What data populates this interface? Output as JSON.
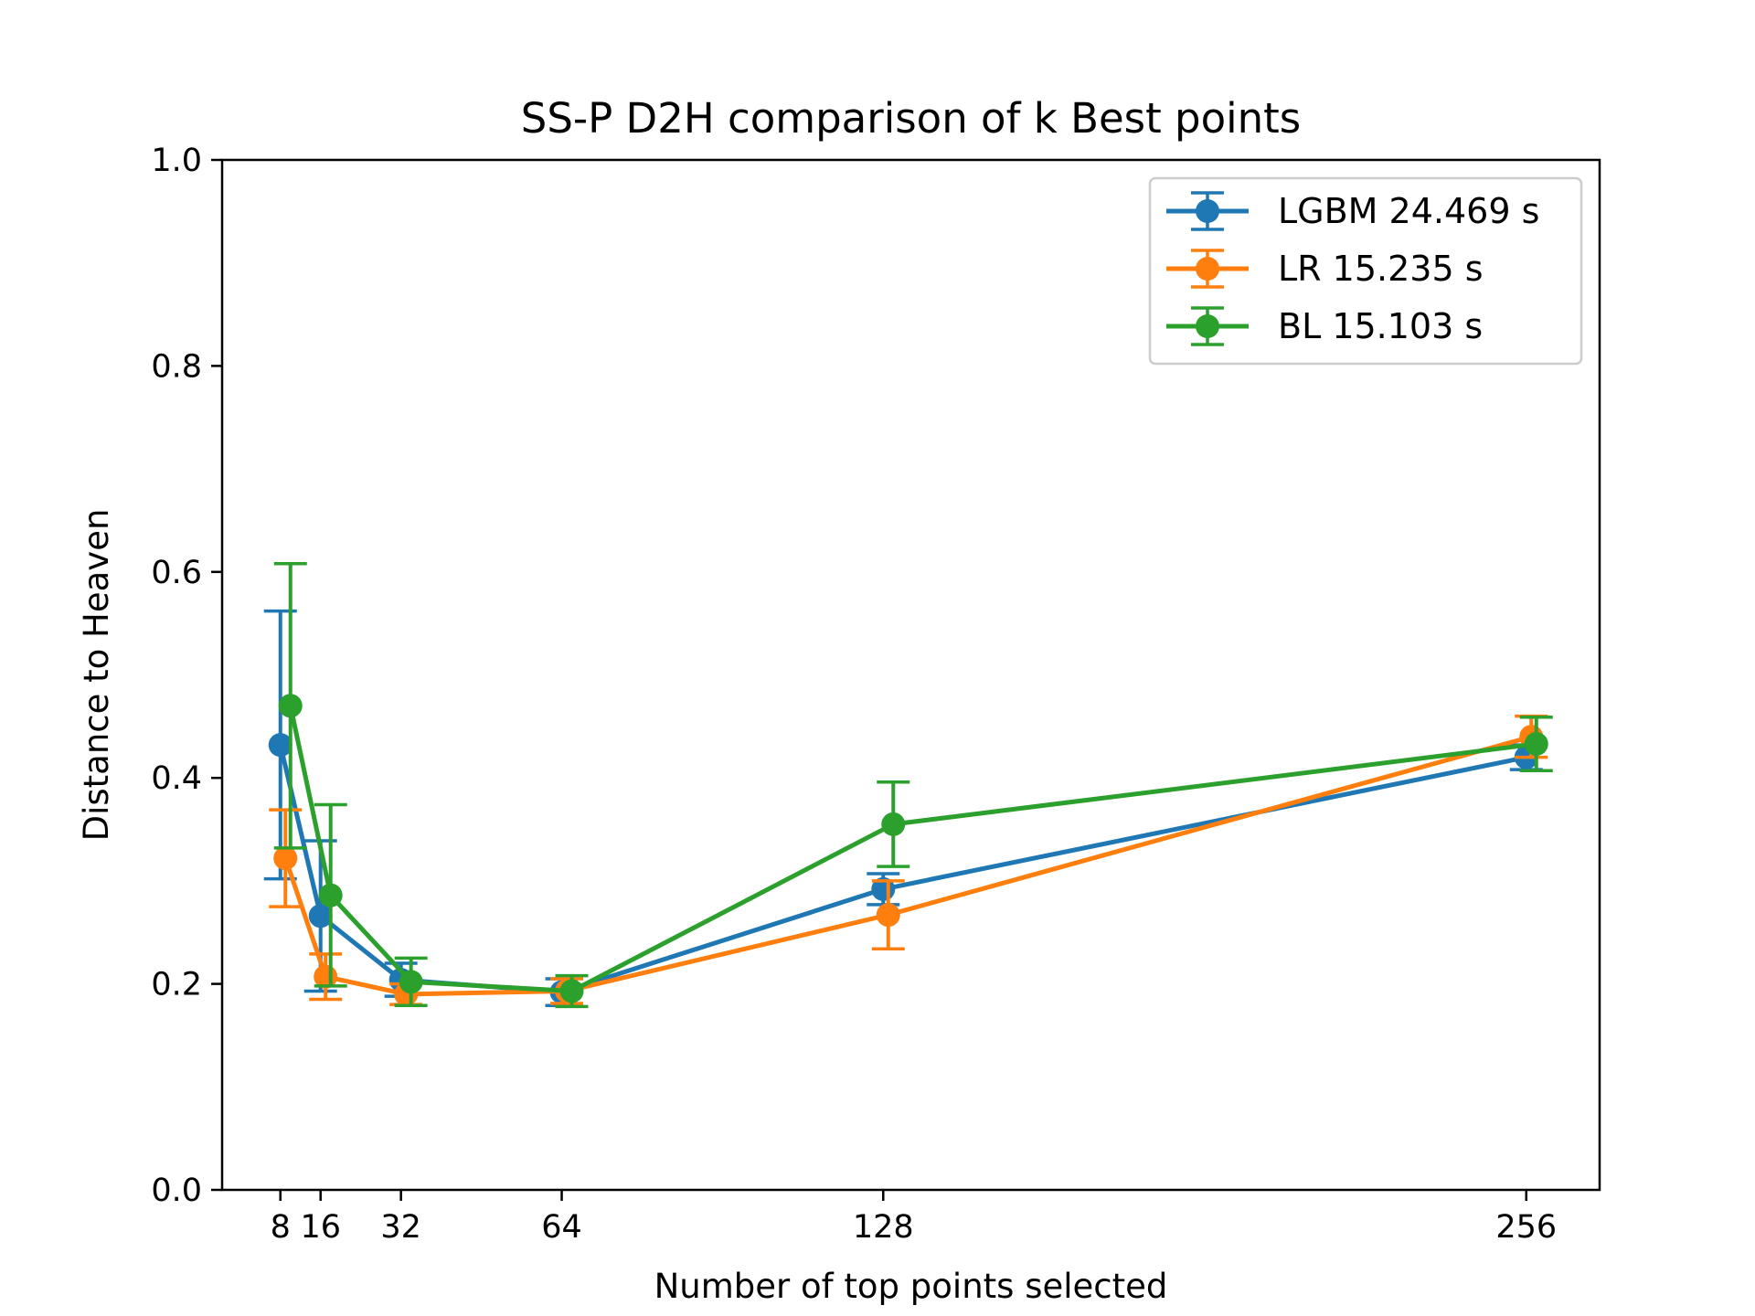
{
  "chart_data": {
    "type": "line",
    "title": "SS-P D2H comparison of k Best points",
    "xlabel": "Number of top points selected",
    "ylabel": "Distance to Heaven",
    "xlim": [
      -3.6,
      270.6
    ],
    "ylim": [
      0.0,
      1.0
    ],
    "xticks": [
      8,
      16,
      32,
      64,
      128,
      256
    ],
    "xtick_labels": [
      "8",
      "16",
      "32",
      "64",
      "128",
      "256"
    ],
    "yticks": [
      0.0,
      0.2,
      0.4,
      0.6,
      0.8,
      1.0
    ],
    "ytick_labels": [
      "0.0",
      "0.2",
      "0.4",
      "0.6",
      "0.8",
      "1.0"
    ],
    "grid": false,
    "legend_position": "top-right",
    "series": [
      {
        "name": "LGBM 24.469 s",
        "color": "#1f77b4",
        "x": [
          8,
          16,
          32,
          64,
          128,
          256
        ],
        "y": [
          0.432,
          0.266,
          0.204,
          0.192,
          0.292,
          0.42
        ],
        "yerr": [
          0.13,
          0.073,
          0.016,
          0.013,
          0.015,
          0.012
        ]
      },
      {
        "name": "LR 15.235 s",
        "color": "#ff7f0e",
        "x": [
          9,
          17,
          33,
          65,
          129,
          257
        ],
        "y": [
          0.322,
          0.207,
          0.19,
          0.193,
          0.267,
          0.44
        ],
        "yerr": [
          0.047,
          0.022,
          0.01,
          0.012,
          0.033,
          0.02
        ]
      },
      {
        "name": "BL 15.103 s",
        "color": "#2ca02c",
        "x": [
          10,
          18,
          34,
          66,
          130,
          258
        ],
        "y": [
          0.47,
          0.286,
          0.202,
          0.193,
          0.355,
          0.433
        ],
        "yerr": [
          0.138,
          0.088,
          0.023,
          0.015,
          0.041,
          0.026
        ]
      }
    ]
  }
}
